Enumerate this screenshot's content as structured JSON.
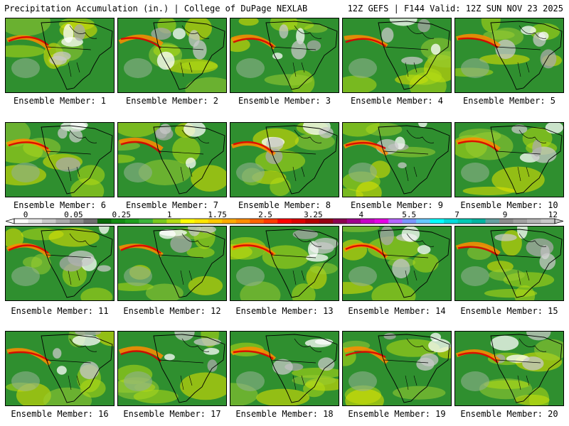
{
  "header": {
    "left": "Precipitation Accumulation (in.) | College of DuPage NEXLAB",
    "right": "12Z GEFS | F144 Valid: 12Z SUN NOV 23 2025"
  },
  "members": [
    "Ensemble Member: 1",
    "Ensemble Member: 2",
    "Ensemble Member: 3",
    "Ensemble Member: 4",
    "Ensemble Member: 5",
    "Ensemble Member: 6",
    "Ensemble Member: 7",
    "Ensemble Member: 8",
    "Ensemble Member: 9",
    "Ensemble Member: 10",
    "Ensemble Member: 11",
    "Ensemble Member: 12",
    "Ensemble Member: 13",
    "Ensemble Member: 14",
    "Ensemble Member: 15",
    "Ensemble Member: 16",
    "Ensemble Member: 17",
    "Ensemble Member: 18",
    "Ensemble Member: 19",
    "Ensemble Member: 20"
  ],
  "legend": {
    "labels": [
      "0",
      "0.05",
      "0.25",
      "1",
      "1.75",
      "2.5",
      "3.25",
      "4",
      "5.5",
      "7",
      "9",
      "12"
    ],
    "colors": [
      "#ffffff",
      "#e6e6e6",
      "#c8c8c8",
      "#aaaaaa",
      "#8c8c8c",
      "#6e6e6e",
      "#0a6a0a",
      "#148c14",
      "#1ea01e",
      "#3cb43c",
      "#78c81e",
      "#b4dc14",
      "#ffff00",
      "#ffe600",
      "#ffc800",
      "#ffaa00",
      "#ff8c00",
      "#ff6400",
      "#ff3c00",
      "#ff0000",
      "#dc0000",
      "#b40000",
      "#960014",
      "#8c0050",
      "#a0008c",
      "#c800c8",
      "#e600e6",
      "#b464ff",
      "#7896ff",
      "#64c8ff",
      "#00ffff",
      "#00dcdc",
      "#00c8b4",
      "#00b4a0",
      "#64a0a0",
      "#8c8c8c",
      "#a0a0a0",
      "#b4b4b4",
      "#c8c8c8"
    ]
  }
}
